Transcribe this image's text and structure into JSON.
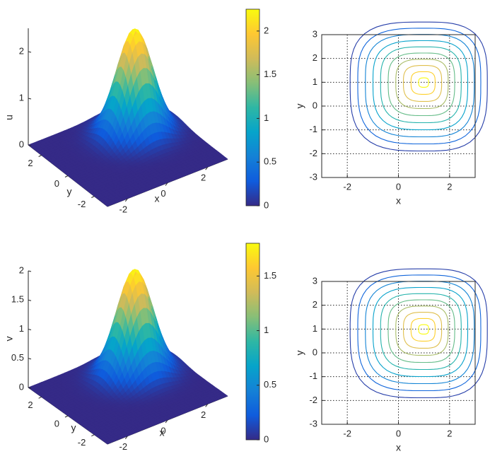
{
  "chart_data": [
    {
      "type": "surface3d",
      "zlabel": "u",
      "xlabel": "x",
      "ylabel": "y",
      "z_ticks": [
        0,
        1,
        2
      ],
      "x_ticks": [
        -2,
        0,
        2
      ],
      "y_ticks": [
        -2,
        0,
        2
      ],
      "xlim": [
        -3,
        3
      ],
      "ylim": [
        -3,
        3
      ],
      "zlim": [
        0,
        2.5
      ],
      "peak": {
        "x": 1,
        "y": 1,
        "value": 2.25
      },
      "colormap": "parula",
      "colorbar": {
        "ticks": [
          "0",
          "0.5",
          "1",
          "1.5",
          "2"
        ],
        "range": [
          0,
          2.25
        ]
      }
    },
    {
      "type": "contour",
      "xlabel": "x",
      "ylabel": "y",
      "x_ticks": [
        "-2",
        "0",
        "2"
      ],
      "y_ticks": [
        "-3",
        "-2",
        "-1",
        "0",
        "1",
        "2",
        "3"
      ],
      "xlim": [
        -3,
        3
      ],
      "ylim": [
        -3,
        3
      ],
      "grid": true,
      "center": {
        "x": 1,
        "y": 1
      },
      "levels": 10,
      "level_range": [
        0.2,
        2.1
      ]
    },
    {
      "type": "surface3d",
      "zlabel": "v",
      "xlabel": "x",
      "ylabel": "y",
      "z_ticks": [
        "0",
        "0.5",
        "1",
        "1.5",
        "2"
      ],
      "x_ticks": [
        -2,
        0,
        2
      ],
      "y_ticks": [
        -2,
        0,
        2
      ],
      "xlim": [
        -3,
        3
      ],
      "ylim": [
        -3,
        3
      ],
      "zlim": [
        0,
        2
      ],
      "peak": {
        "x": 1,
        "y": 1,
        "value": 1.8
      },
      "colormap": "parula",
      "colorbar": {
        "ticks": [
          "0",
          "0.5",
          "1",
          "1.5"
        ],
        "range": [
          0,
          1.8
        ]
      }
    },
    {
      "type": "contour",
      "xlabel": "x",
      "ylabel": "y",
      "x_ticks": [
        "-2",
        "0",
        "2"
      ],
      "y_ticks": [
        "-3",
        "-2",
        "-1",
        "0",
        "1",
        "2",
        "3"
      ],
      "xlim": [
        -3,
        3
      ],
      "ylim": [
        -3,
        3
      ],
      "grid": true,
      "center": {
        "x": 1,
        "y": 1
      },
      "levels": 10,
      "level_range": [
        0.15,
        1.7
      ]
    }
  ]
}
